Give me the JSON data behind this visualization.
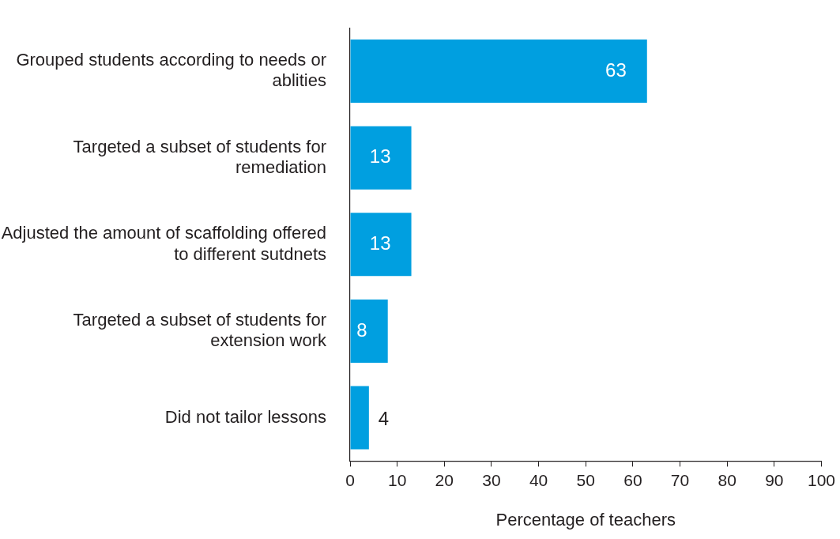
{
  "chart_data": {
    "type": "bar",
    "orientation": "horizontal",
    "xlabel": "Percentage of teachers",
    "categories": [
      "Grouped students according to needs or ablities",
      "Targeted a subset of students for remediation",
      "Adjusted the amount of scaffolding offered to different sutdnets",
      "Targeted a subset of students for extension work",
      "Did not tailor lessons"
    ],
    "values": [
      63,
      13,
      13,
      8,
      4
    ],
    "color": "#009fe0",
    "xlim": [
      0,
      100
    ],
    "xticks": [
      0,
      10,
      20,
      30,
      40,
      50,
      60,
      70,
      80,
      90,
      100
    ],
    "data_labels": true,
    "legend": false
  }
}
